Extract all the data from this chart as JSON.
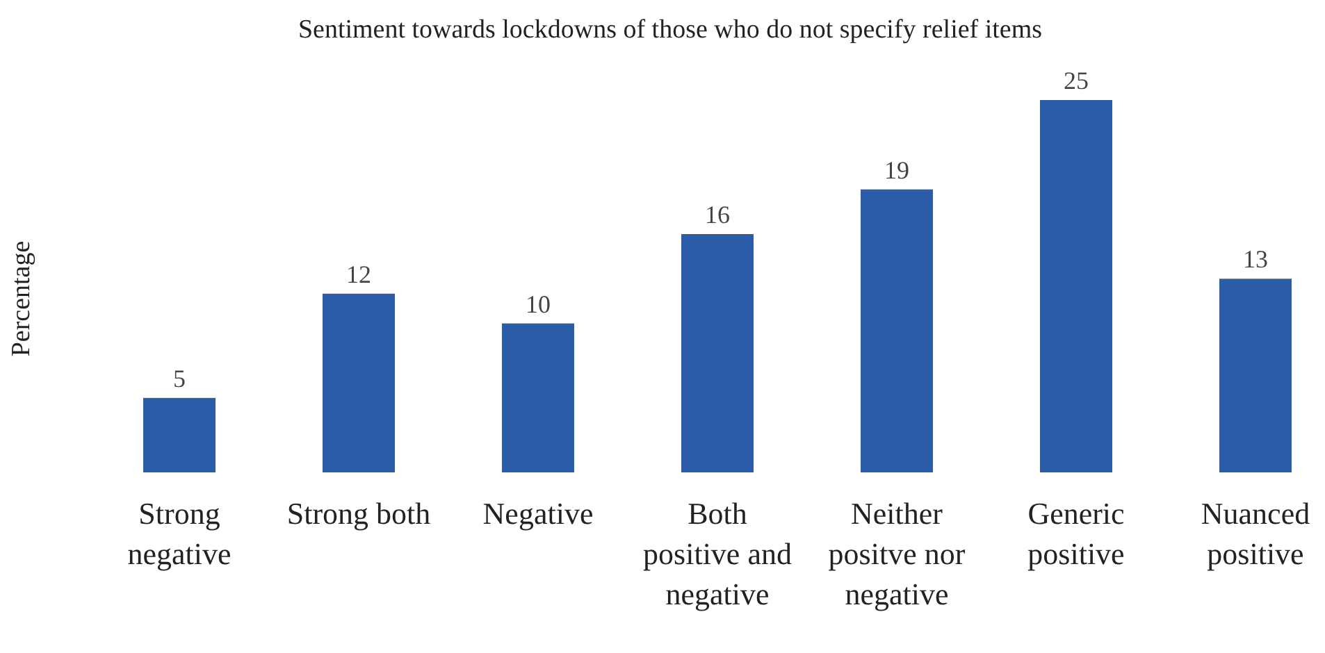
{
  "chart_data": {
    "type": "bar",
    "title": "Sentiment towards lockdowns of those who do not specify relief items",
    "ylabel": "Percentage",
    "categories": [
      "Strong negative",
      "Strong both",
      "Negative",
      "Both positive and negative",
      "Neither positve nor negative",
      "Generic positive",
      "Nuanced positive"
    ],
    "values": [
      5,
      12,
      10,
      16,
      19,
      25,
      13
    ],
    "color": "#2a5caa",
    "data_labels": true
  }
}
